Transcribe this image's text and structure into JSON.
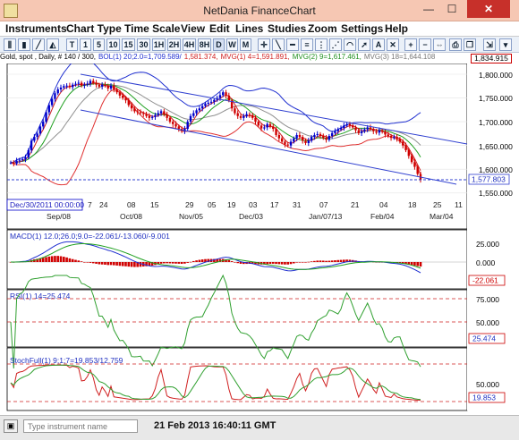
{
  "window": {
    "title": "NetDania FinanceChart",
    "minimize": "—",
    "maximize": "☐",
    "close": "✕"
  },
  "menu": [
    "Instruments",
    "Chart Type",
    "Time Scale",
    "View",
    "Edit",
    "Lines",
    "Studies",
    "Zoom",
    "Settings",
    "Help"
  ],
  "toolbar": {
    "buttons": [
      "T",
      "1",
      "5",
      "10",
      "15",
      "30",
      "1H",
      "2H",
      "4H",
      "8H",
      "D",
      "W",
      "M"
    ]
  },
  "info": {
    "symbol": "Gold, spot , Daily, # 140 / 300,",
    "bol": "BOL(1) 20;2.0=1,709.589/",
    "bol2": "1,581.374,",
    "mvg4": "MVG(1) 4=1,591.891,",
    "mvg9": "MVG(2) 9=1,617.461,",
    "mvg18": "MVG(3) 18=1,644.108",
    "last": "1,834.915"
  },
  "price_axis": {
    "ticks": [
      "1,800.000",
      "1,750.000",
      "1,700.000",
      "1,650.000",
      "1,600.000",
      "1,550.000"
    ],
    "current": "1,577.803",
    "last": "1,834.915"
  },
  "date_axis": {
    "days": [
      "7",
      "24",
      "08",
      "15",
      "29",
      "05",
      "19",
      "03",
      "17",
      "31",
      "07",
      "21",
      "04",
      "18",
      "25",
      "11"
    ],
    "months": [
      "Sep/08",
      "Oct/08",
      "Nov/05",
      "Dec/03",
      "Jan/07/13",
      "Feb/04",
      "Mar/04"
    ],
    "cursor": "Dec/30/2011 00:00:00"
  },
  "macd": {
    "label": "MACD(1) 12.0;26.0;9.0=-22.061/-13.060/-9.001",
    "ticks": [
      "25.000",
      "0.000"
    ],
    "current": "-22.061"
  },
  "rsi": {
    "label": "RSI(1) 14=25.474",
    "ticks": [
      "75.000",
      "50.000"
    ],
    "current": "25.474"
  },
  "stoch": {
    "label": "StochFull(1) 9;1;7=19.853/12.759",
    "ticks": [
      "50.000"
    ],
    "current": "19.853"
  },
  "status": {
    "placeholder": "Type instrument name",
    "timestamp": "21 Feb 2013 16:40:11 GMT"
  },
  "colors": {
    "up": "#0000cc",
    "down": "#d00000",
    "bol": "#2030d0",
    "mvg4": "#d02020",
    "mvg9": "#20a020",
    "mvg18": "#909090",
    "trend": "#3040d0"
  },
  "chart_data": {
    "type": "line",
    "title": "Gold, spot , Daily",
    "ylim": [
      1550,
      1820
    ],
    "close": [
      1614,
      1612,
      1618,
      1620,
      1621,
      1625,
      1640,
      1660,
      1668,
      1675,
      1690,
      1700,
      1720,
      1735,
      1748,
      1760,
      1768,
      1772,
      1775,
      1776,
      1773,
      1778,
      1780,
      1782,
      1776,
      1778,
      1780,
      1786,
      1782,
      1778,
      1774,
      1778,
      1776,
      1770,
      1776,
      1768,
      1762,
      1755,
      1750,
      1745,
      1735,
      1728,
      1722,
      1720,
      1718,
      1716,
      1712,
      1708,
      1710,
      1714,
      1718,
      1722,
      1715,
      1708,
      1700,
      1695,
      1690,
      1685,
      1680,
      1685,
      1700,
      1712,
      1718,
      1724,
      1728,
      1733,
      1738,
      1740,
      1742,
      1746,
      1750,
      1756,
      1762,
      1755,
      1745,
      1728,
      1718,
      1712,
      1708,
      1712,
      1716,
      1714,
      1708,
      1700,
      1692,
      1686,
      1688,
      1695,
      1690,
      1685,
      1672,
      1665,
      1658,
      1652,
      1650,
      1658,
      1665,
      1672,
      1668,
      1660,
      1655,
      1660,
      1668,
      1672,
      1674,
      1670,
      1666,
      1662,
      1670,
      1676,
      1680,
      1684,
      1687,
      1692,
      1695,
      1692,
      1688,
      1682,
      1676,
      1680,
      1684,
      1688,
      1685,
      1680,
      1677,
      1682,
      1679,
      1673,
      1670,
      1666,
      1668,
      1664,
      1658,
      1650,
      1640,
      1628,
      1615,
      1605,
      1590,
      1578
    ]
  }
}
